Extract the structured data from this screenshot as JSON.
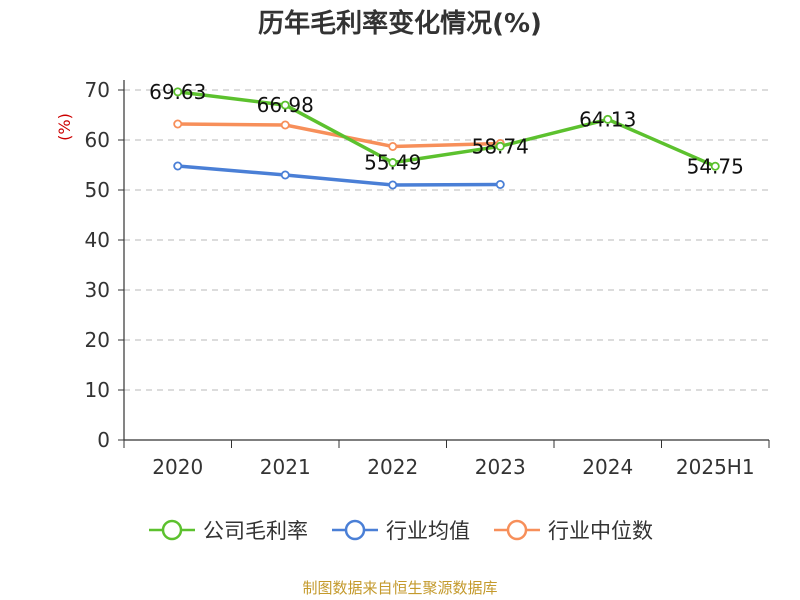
{
  "chart_data": {
    "type": "line",
    "title": "历年毛利率变化情况(%)",
    "ylabel": "(%)",
    "ylim": [
      0,
      70
    ],
    "yticks": [
      0,
      10,
      20,
      30,
      40,
      50,
      60,
      70
    ],
    "categories": [
      "2020",
      "2021",
      "2022",
      "2023",
      "2024",
      "2025H1"
    ],
    "grid": true,
    "legend_position": "bottom",
    "series": [
      {
        "name": "公司毛利率",
        "color": "#5cc12e",
        "values": [
          69.63,
          66.98,
          55.49,
          58.74,
          64.13,
          54.75
        ],
        "labels": [
          "69.63",
          "66.98",
          "55.49",
          "58.74",
          "64.13",
          "54.75"
        ]
      },
      {
        "name": "行业均值",
        "color": "#4a7fd6",
        "values": [
          54.8,
          53.0,
          51.0,
          51.1,
          null,
          null
        ],
        "labels": []
      },
      {
        "name": "行业中位数",
        "color": "#f78f5a",
        "values": [
          63.2,
          63.0,
          58.7,
          59.3,
          null,
          null
        ],
        "labels": []
      }
    ]
  },
  "source": {
    "text": "制图数据来自恒生聚源数据库",
    "color": "#c49a2c"
  },
  "ylabel_color": "#cc0000"
}
